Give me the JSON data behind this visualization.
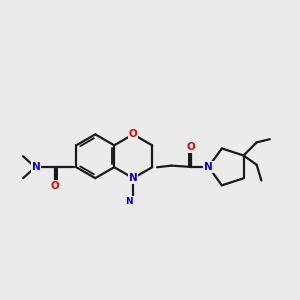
{
  "bg_color": "#ebebeb",
  "bond_color": "#1a1a1a",
  "N_color": "#0000ee",
  "O_color": "#ee0000",
  "line_width": 1.6,
  "fig_size": [
    3.0,
    3.0
  ],
  "dpi": 100,
  "xlim": [
    -1.0,
    8.5
  ],
  "ylim": [
    1.5,
    8.0
  ]
}
